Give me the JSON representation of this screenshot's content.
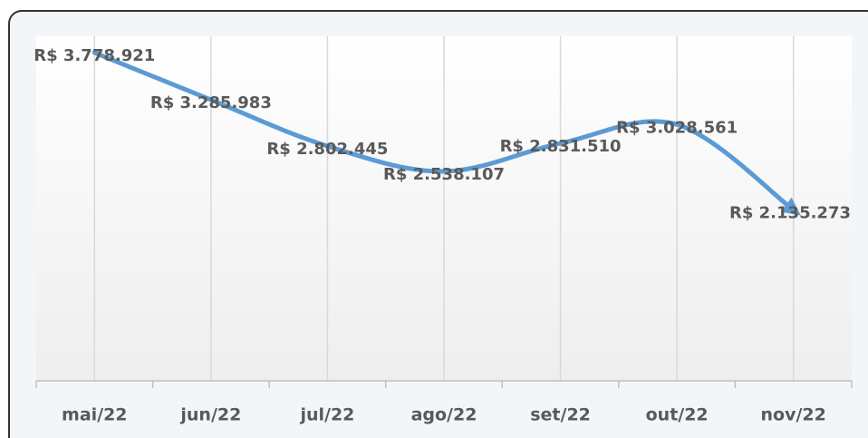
{
  "chart_data": {
    "type": "line",
    "categories": [
      "mai/22",
      "jun/22",
      "jul/22",
      "ago/22",
      "set/22",
      "out/22",
      "nov/22"
    ],
    "series": [
      {
        "color": "#5b9bd5",
        "values": [
          3778921,
          3285983,
          2802445,
          2538107,
          2831510,
          3028561,
          2135273
        ],
        "value_labels": [
          "R$ 3.778.921",
          "R$ 3.285.983",
          "R$ 2.802.445",
          "R$ 2.538.107",
          "R$ 2.831.510",
          "R$ 3.028.561",
          "R$ 2.135.273"
        ]
      }
    ],
    "ylim": [
      350000,
      3950000
    ],
    "grid": true
  }
}
